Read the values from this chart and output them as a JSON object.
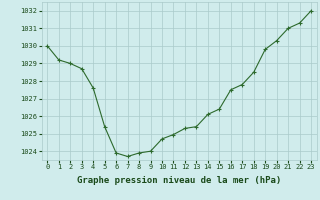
{
  "x": [
    0,
    1,
    2,
    3,
    4,
    5,
    6,
    7,
    8,
    9,
    10,
    11,
    12,
    13,
    14,
    15,
    16,
    17,
    18,
    19,
    20,
    21,
    22,
    23
  ],
  "y": [
    1030.0,
    1029.2,
    1029.0,
    1028.7,
    1027.6,
    1025.4,
    1023.9,
    1023.7,
    1023.9,
    1024.0,
    1024.7,
    1024.95,
    1025.3,
    1025.4,
    1026.1,
    1026.4,
    1027.5,
    1027.8,
    1028.5,
    1029.8,
    1030.3,
    1031.0,
    1031.3,
    1032.0
  ],
  "line_color": "#2d6a2d",
  "marker": "+",
  "bg_color": "#d0ecec",
  "grid_color": "#aacaca",
  "xlabel": "Graphe pression niveau de la mer (hPa)",
  "xlabel_color": "#1a4a1a",
  "ylim": [
    1023.5,
    1032.5
  ],
  "xlim": [
    -0.5,
    23.5
  ],
  "yticks": [
    1024,
    1025,
    1026,
    1027,
    1028,
    1029,
    1030,
    1031,
    1032
  ],
  "xticks": [
    0,
    1,
    2,
    3,
    4,
    5,
    6,
    7,
    8,
    9,
    10,
    11,
    12,
    13,
    14,
    15,
    16,
    17,
    18,
    19,
    20,
    21,
    22,
    23
  ],
  "tick_color": "#1a4a1a",
  "tick_fontsize": 5.0,
  "xlabel_fontsize": 6.5,
  "linewidth": 0.8,
  "markersize": 3.5,
  "markeredgewidth": 0.8
}
